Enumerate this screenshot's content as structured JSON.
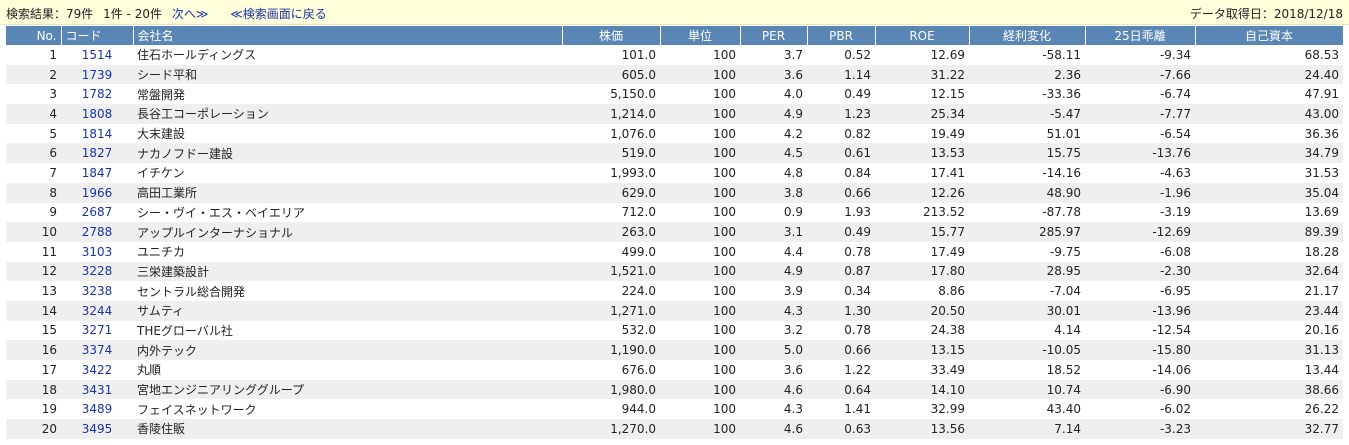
{
  "header": {
    "result_summary": "検索結果：79件",
    "range": "1件 - 20件",
    "next_link": "次へ≫",
    "back_link": "≪検索画面に戻る",
    "date": "データ取得日：2018/12/18"
  },
  "columns": [
    "No.",
    "コード",
    "会社名",
    "株価",
    "単位",
    "PER",
    "PBR",
    "ROE",
    "経利変化",
    "25日乖離",
    "自己資本"
  ],
  "rows": [
    [
      "1",
      "1514",
      "住石ホールディングス",
      "101.0",
      "100",
      "3.7",
      "0.52",
      "12.69",
      "-58.11",
      "-9.34",
      "68.53"
    ],
    [
      "2",
      "1739",
      "シード平和",
      "605.0",
      "100",
      "3.6",
      "1.14",
      "31.22",
      "2.36",
      "-7.66",
      "24.40"
    ],
    [
      "3",
      "1782",
      "常盤開発",
      "5,150.0",
      "100",
      "4.0",
      "0.49",
      "12.15",
      "-33.36",
      "-6.74",
      "47.91"
    ],
    [
      "4",
      "1808",
      "長谷工コーポレーション",
      "1,214.0",
      "100",
      "4.9",
      "1.23",
      "25.34",
      "-5.47",
      "-7.77",
      "43.00"
    ],
    [
      "5",
      "1814",
      "大末建設",
      "1,076.0",
      "100",
      "4.2",
      "0.82",
      "19.49",
      "51.01",
      "-6.54",
      "36.36"
    ],
    [
      "6",
      "1827",
      "ナカノフドー建設",
      "519.0",
      "100",
      "4.5",
      "0.61",
      "13.53",
      "15.75",
      "-13.76",
      "34.79"
    ],
    [
      "7",
      "1847",
      "イチケン",
      "1,993.0",
      "100",
      "4.8",
      "0.84",
      "17.41",
      "-14.16",
      "-4.63",
      "31.53"
    ],
    [
      "8",
      "1966",
      "高田工業所",
      "629.0",
      "100",
      "3.8",
      "0.66",
      "12.26",
      "48.90",
      "-1.96",
      "35.04"
    ],
    [
      "9",
      "2687",
      "シー・ヴイ・エス・ベイエリア",
      "712.0",
      "100",
      "0.9",
      "1.93",
      "213.52",
      "-87.78",
      "-3.19",
      "13.69"
    ],
    [
      "10",
      "2788",
      "アップルインターナショナル",
      "263.0",
      "100",
      "3.1",
      "0.49",
      "15.77",
      "285.97",
      "-12.69",
      "89.39"
    ],
    [
      "11",
      "3103",
      "ユニチカ",
      "499.0",
      "100",
      "4.4",
      "0.78",
      "17.49",
      "-9.75",
      "-6.08",
      "18.28"
    ],
    [
      "12",
      "3228",
      "三栄建築設計",
      "1,521.0",
      "100",
      "4.9",
      "0.87",
      "17.80",
      "28.95",
      "-2.30",
      "32.64"
    ],
    [
      "13",
      "3238",
      "セントラル総合開発",
      "224.0",
      "100",
      "3.9",
      "0.34",
      "8.86",
      "-7.04",
      "-6.95",
      "21.17"
    ],
    [
      "14",
      "3244",
      "サムティ",
      "1,271.0",
      "100",
      "4.3",
      "1.30",
      "20.50",
      "30.01",
      "-13.96",
      "23.44"
    ],
    [
      "15",
      "3271",
      "THEグローバル社",
      "532.0",
      "100",
      "3.2",
      "0.78",
      "24.38",
      "4.14",
      "-12.54",
      "20.16"
    ],
    [
      "16",
      "3374",
      "内外テック",
      "1,190.0",
      "100",
      "5.0",
      "0.66",
      "13.15",
      "-10.05",
      "-15.80",
      "31.13"
    ],
    [
      "17",
      "3422",
      "丸順",
      "676.0",
      "100",
      "3.6",
      "1.22",
      "33.49",
      "18.52",
      "-14.06",
      "13.44"
    ],
    [
      "18",
      "3431",
      "宮地エンジニアリンググループ",
      "1,980.0",
      "100",
      "4.6",
      "0.64",
      "14.10",
      "10.74",
      "-6.90",
      "38.66"
    ],
    [
      "19",
      "3489",
      "フェイスネットワーク",
      "944.0",
      "100",
      "4.3",
      "1.41",
      "32.99",
      "43.40",
      "-6.02",
      "26.22"
    ],
    [
      "20",
      "3495",
      "香陵住販",
      "1,270.0",
      "100",
      "4.6",
      "0.63",
      "13.56",
      "7.14",
      "-3.23",
      "32.77"
    ]
  ]
}
